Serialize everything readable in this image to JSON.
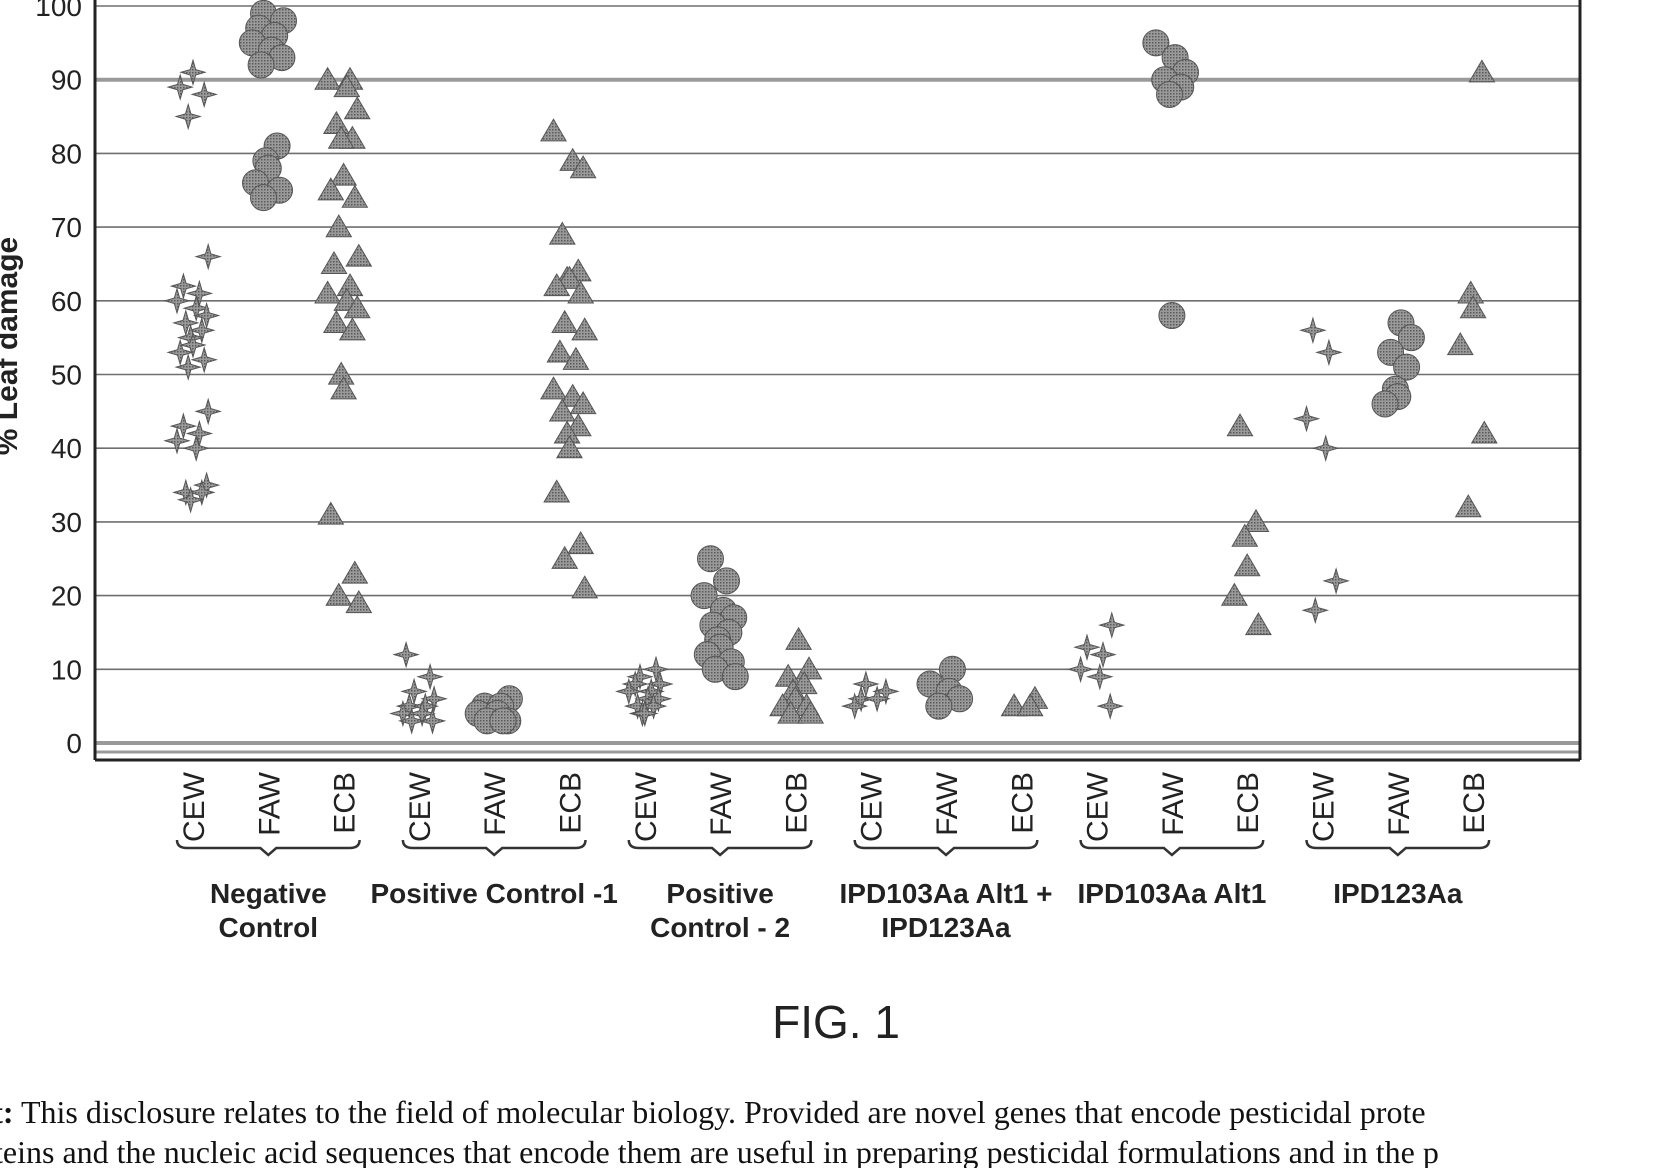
{
  "chart_data": {
    "type": "scatter",
    "ylabel": "% Leaf damage",
    "ylim": [
      0,
      100
    ],
    "yticks": [
      0,
      10,
      20,
      30,
      40,
      50,
      60,
      70,
      80,
      90,
      100
    ],
    "grid": true,
    "marker_colors": {
      "stroke": "#555555",
      "fill": "#8a8a8a"
    },
    "insects": [
      "CEW",
      "FAW",
      "ECB"
    ],
    "marker_by_insect": {
      "CEW": "star",
      "FAW": "circle",
      "ECB": "triangle"
    },
    "groups": [
      {
        "label_lines": [
          "Negative",
          "Control"
        ],
        "series": [
          {
            "insect": "CEW",
            "values": [
              91,
              89,
              88,
              85,
              66,
              62,
              61,
              60,
              59,
              58,
              57,
              56,
              55,
              54,
              53,
              52,
              51,
              45,
              43,
              42,
              41,
              40,
              35,
              34,
              34,
              33
            ]
          },
          {
            "insect": "FAW",
            "values": [
              99,
              98,
              97,
              96,
              95,
              94,
              93,
              92,
              81,
              79,
              78,
              76,
              75,
              74
            ]
          },
          {
            "insect": "ECB",
            "values": [
              90,
              90,
              89,
              86,
              84,
              82,
              82,
              77,
              75,
              74,
              70,
              66,
              65,
              62,
              61,
              60,
              59,
              57,
              56,
              50,
              48,
              31,
              23,
              20,
              19
            ]
          }
        ]
      },
      {
        "label_lines": [
          "Positive Control -1"
        ],
        "series": [
          {
            "insect": "CEW",
            "values": [
              12,
              9,
              7,
              6,
              5,
              5,
              4,
              4,
              3,
              3
            ]
          },
          {
            "insect": "FAW",
            "values": [
              6,
              5,
              5,
              4,
              4,
              3,
              3,
              3
            ]
          },
          {
            "insect": "ECB",
            "values": [
              83,
              79,
              78,
              69,
              64,
              63,
              63,
              62,
              61,
              57,
              56,
              53,
              52,
              48,
              47,
              46,
              45,
              43,
              42,
              40,
              34,
              27,
              25,
              21
            ]
          }
        ]
      },
      {
        "label_lines": [
          "Positive",
          "Control - 2"
        ],
        "series": [
          {
            "insect": "CEW",
            "values": [
              10,
              9,
              8,
              8,
              7,
              7,
              6,
              6,
              5,
              5,
              4,
              4
            ]
          },
          {
            "insect": "FAW",
            "values": [
              25,
              22,
              20,
              18,
              17,
              16,
              15,
              14,
              13,
              12,
              11,
              10,
              9
            ]
          },
          {
            "insect": "ECB",
            "values": [
              14,
              10,
              9,
              8,
              7,
              6,
              5,
              5,
              4,
              4
            ]
          }
        ]
      },
      {
        "label_lines": [
          "IPD103Aa Alt1 +",
          "IPD123Aa"
        ],
        "series": [
          {
            "insect": "CEW",
            "values": [
              8,
              7,
              6,
              6,
              5
            ]
          },
          {
            "insect": "FAW",
            "values": [
              10,
              8,
              7,
              6,
              5
            ]
          },
          {
            "insect": "ECB",
            "values": [
              6,
              5,
              5
            ]
          }
        ]
      },
      {
        "label_lines": [
          "IPD103Aa Alt1"
        ],
        "series": [
          {
            "insect": "CEW",
            "values": [
              16,
              13,
              12,
              10,
              9,
              5
            ]
          },
          {
            "insect": "FAW",
            "values": [
              95,
              93,
              91,
              90,
              89,
              88,
              58
            ]
          },
          {
            "insect": "ECB",
            "values": [
              43,
              30,
              28,
              24,
              20,
              16
            ]
          }
        ]
      },
      {
        "label_lines": [
          "IPD123Aa"
        ],
        "series": [
          {
            "insect": "CEW",
            "values": [
              56,
              53,
              44,
              40,
              22,
              18
            ]
          },
          {
            "insect": "FAW",
            "values": [
              57,
              55,
              53,
              51,
              48,
              47,
              46
            ]
          },
          {
            "insect": "ECB",
            "values": [
              91,
              61,
              59,
              54,
              42,
              32
            ]
          }
        ]
      }
    ]
  },
  "figure": {
    "caption": "FIG. 1",
    "tick_top_label": "100"
  },
  "abstract": {
    "label": "ct:",
    "line1": "This disclosure relates to the field of molecular biology. Provided are novel genes that encode pesticidal prote",
    "line2": "oteins and the nucleic acid sequences that encode them are useful in preparing pesticidal formulations and in the p"
  }
}
